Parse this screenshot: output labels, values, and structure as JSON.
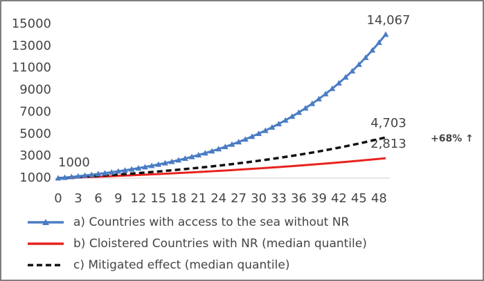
{
  "chart_data": {
    "type": "line",
    "x": [
      0,
      1,
      2,
      3,
      4,
      5,
      6,
      7,
      8,
      9,
      10,
      11,
      12,
      13,
      14,
      15,
      16,
      17,
      18,
      19,
      20,
      21,
      22,
      23,
      24,
      25,
      26,
      27,
      28,
      29,
      30,
      31,
      32,
      33,
      34,
      35,
      36,
      37,
      38,
      39,
      40,
      41,
      42,
      43,
      44,
      45,
      46,
      47,
      48,
      49
    ],
    "xlim": [
      0,
      49
    ],
    "xticks": [
      0,
      3,
      6,
      9,
      12,
      15,
      18,
      21,
      24,
      27,
      30,
      33,
      36,
      39,
      42,
      45,
      48
    ],
    "ylim": [
      1000,
      15000
    ],
    "yticks": [
      1000,
      3000,
      5000,
      7000,
      9000,
      11000,
      13000,
      15000
    ],
    "series": [
      {
        "name": "a) Countries with access to the sea without NR",
        "color": "#4a7cc4",
        "marker": "triangle",
        "values": [
          1000,
          1055,
          1114,
          1176,
          1241,
          1310,
          1382,
          1459,
          1540,
          1625,
          1715,
          1810,
          1910,
          2016,
          2128,
          2246,
          2370,
          2502,
          2641,
          2787,
          2942,
          3105,
          3277,
          3459,
          3651,
          3853,
          4067,
          4292,
          4530,
          4781,
          5046,
          5326,
          5621,
          5933,
          6262,
          6609,
          6975,
          7362,
          7770,
          8201,
          8656,
          9136,
          9642,
          10177,
          10741,
          11336,
          11965,
          12628,
          13328,
          14067
        ],
        "value_labels": [
          "1000",
          null,
          null,
          null,
          null,
          null,
          null,
          null,
          null,
          null,
          null,
          null,
          null,
          null,
          null,
          null,
          null,
          null,
          null,
          null,
          null,
          null,
          null,
          null,
          null,
          null,
          null,
          null,
          null,
          null,
          null,
          null,
          null,
          null,
          null,
          null,
          null,
          null,
          null,
          null,
          null,
          null,
          null,
          null,
          null,
          null,
          null,
          null,
          null,
          "14,067"
        ]
      },
      {
        "name": "b) Cloistered Countries with NR (median quantile)",
        "color": "#e8221e",
        "dash": "solid",
        "values": [
          1000,
          1021,
          1043,
          1065,
          1088,
          1111,
          1135,
          1159,
          1184,
          1209,
          1235,
          1261,
          1288,
          1315,
          1343,
          1372,
          1401,
          1431,
          1462,
          1493,
          1525,
          1557,
          1590,
          1624,
          1659,
          1694,
          1730,
          1767,
          1805,
          1844,
          1883,
          1923,
          1964,
          2006,
          2049,
          2093,
          2137,
          2183,
          2229,
          2277,
          2326,
          2375,
          2426,
          2478,
          2530,
          2584,
          2640,
          2696,
          2753,
          2813
        ],
        "value_labels": [
          null,
          null,
          null,
          null,
          null,
          null,
          null,
          null,
          null,
          null,
          null,
          null,
          null,
          null,
          null,
          null,
          null,
          null,
          null,
          null,
          null,
          null,
          null,
          null,
          null,
          null,
          null,
          null,
          null,
          null,
          null,
          null,
          null,
          null,
          null,
          null,
          null,
          null,
          null,
          null,
          null,
          null,
          null,
          null,
          null,
          null,
          null,
          null,
          null,
          "2,813"
        ]
      },
      {
        "name": "c) Mitigated effect (median quantile)",
        "color": "#111111",
        "dash": "dashed",
        "values": [
          1000,
          1032,
          1065,
          1099,
          1135,
          1171,
          1209,
          1248,
          1288,
          1329,
          1372,
          1416,
          1461,
          1508,
          1557,
          1607,
          1658,
          1711,
          1766,
          1823,
          1882,
          1942,
          2004,
          2069,
          2135,
          2204,
          2274,
          2347,
          2423,
          2501,
          2581,
          2664,
          2749,
          2838,
          2929,
          3023,
          3120,
          3220,
          3323,
          3430,
          3540,
          3654,
          3771,
          3892,
          4017,
          4146,
          4279,
          4417,
          4558,
          4703
        ],
        "value_labels": [
          null,
          null,
          null,
          null,
          null,
          null,
          null,
          null,
          null,
          null,
          null,
          null,
          null,
          null,
          null,
          null,
          null,
          null,
          null,
          null,
          null,
          null,
          null,
          null,
          null,
          null,
          null,
          null,
          null,
          null,
          null,
          null,
          null,
          null,
          null,
          null,
          null,
          null,
          null,
          null,
          null,
          null,
          null,
          null,
          null,
          null,
          null,
          null,
          null,
          "4,703"
        ]
      }
    ],
    "annotation": "+68% ↑",
    "annotation_color": "#2eaa4a",
    "grid": false
  }
}
